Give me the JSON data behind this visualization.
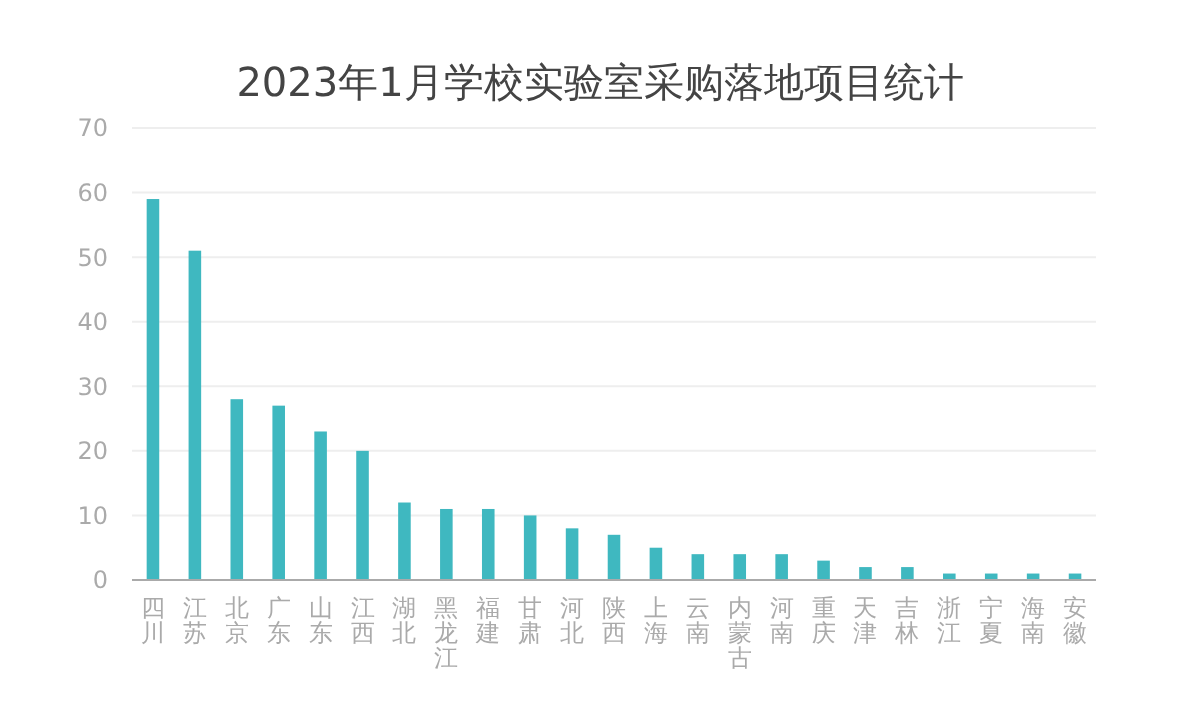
{
  "chart_data": {
    "type": "bar",
    "title": "2023年1月学校实验室采购落地项目统计",
    "categories": [
      "四川",
      "江苏",
      "北京",
      "广东",
      "山东",
      "江西",
      "湖北",
      "黑龙江",
      "福建",
      "甘肃",
      "河北",
      "陕西",
      "上海",
      "云南",
      "内蒙古",
      "河南",
      "重庆",
      "天津",
      "吉林",
      "浙江",
      "宁夏",
      "海南",
      "安徽"
    ],
    "values": [
      59,
      51,
      28,
      27,
      23,
      20,
      12,
      11,
      11,
      10,
      8,
      7,
      5,
      4,
      4,
      4,
      3,
      2,
      2,
      1,
      1,
      1,
      1
    ],
    "color": "#3fb8c0",
    "ylim": [
      0,
      70
    ],
    "yticks": [
      0,
      10,
      20,
      30,
      40,
      50,
      60,
      70
    ],
    "grid": "y"
  }
}
